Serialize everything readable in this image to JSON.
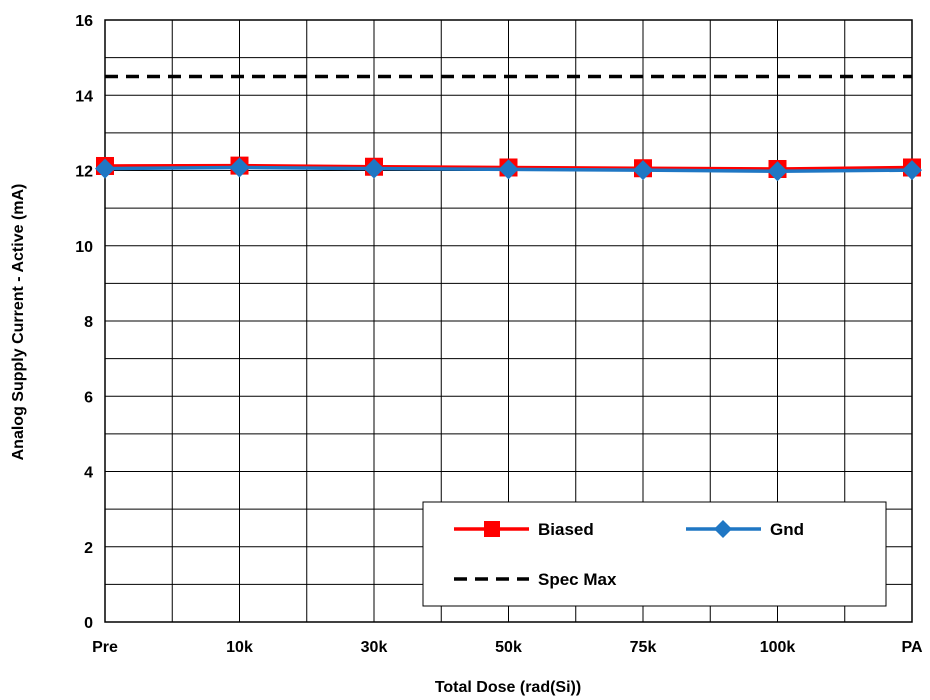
{
  "chart_data": {
    "type": "line",
    "title": "",
    "xlabel": "Total Dose (rad(Si))",
    "ylabel": "Analog Supply Current - Active (mA)",
    "categories": [
      "Pre",
      "10k",
      "30k",
      "50k",
      "75k",
      "100k",
      "PA"
    ],
    "ylim": [
      0,
      16
    ],
    "yticks": [
      0,
      2,
      4,
      6,
      8,
      10,
      12,
      14,
      16
    ],
    "grid": true,
    "legend_position": "bottom-right",
    "series": [
      {
        "name": "Biased",
        "values": [
          12.12,
          12.13,
          12.1,
          12.08,
          12.06,
          12.04,
          12.08
        ],
        "color": "#ff0000",
        "marker": "square",
        "dash": "solid"
      },
      {
        "name": "Gnd",
        "values": [
          12.05,
          12.08,
          12.05,
          12.03,
          12.01,
          11.98,
          12.01
        ],
        "color": "#1f77c4",
        "marker": "diamond",
        "dash": "solid"
      }
    ],
    "reference_lines": [
      {
        "name": "Spec Max",
        "value": 14.5,
        "color": "#000000",
        "dash": "dashed"
      }
    ]
  }
}
